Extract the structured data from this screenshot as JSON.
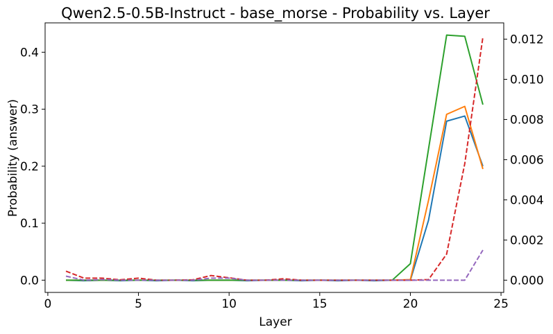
{
  "chart_data": {
    "type": "line",
    "title": "Qwen2.5-0.5B-Instruct - base_morse - Probability vs. Layer",
    "xlabel": "Layer",
    "ylabel": "Probability (answer)",
    "xlim": [
      -0.15,
      25.15
    ],
    "ylim": [
      -0.0215,
      0.4515
    ],
    "y2lim": [
      -0.00061,
      0.01281
    ],
    "xticks": [
      0,
      5,
      10,
      15,
      20,
      25
    ],
    "yticks": [
      0.0,
      0.1,
      0.2,
      0.3,
      0.4
    ],
    "ytick_labels": [
      "0.0",
      "0.1",
      "0.2",
      "0.3",
      "0.4"
    ],
    "y2ticks": [
      0.0,
      0.002,
      0.004,
      0.006,
      0.008,
      0.01,
      0.012
    ],
    "y2tick_labels": [
      "0.000",
      "0.002",
      "0.004",
      "0.006",
      "0.008",
      "0.010",
      "0.012"
    ],
    "grid": false,
    "x": [
      1,
      2,
      3,
      4,
      5,
      6,
      7,
      8,
      9,
      10,
      11,
      12,
      13,
      14,
      15,
      16,
      17,
      18,
      19,
      20,
      21,
      22,
      23,
      24
    ],
    "series": [
      {
        "axis": "left",
        "style": "solid",
        "color": "#1f77b4",
        "values": [
          0.0,
          -0.001,
          0.0,
          -0.001,
          0.0,
          -0.001,
          0.0,
          -0.001,
          0.0,
          0.0,
          -0.001,
          0.0,
          0.0,
          -0.001,
          0.0,
          -0.001,
          0.0,
          -0.001,
          0.0,
          0.0,
          0.105,
          0.279,
          0.288,
          0.2
        ]
      },
      {
        "axis": "left",
        "style": "solid",
        "color": "#ff7f0e",
        "values": [
          0.0,
          0.0,
          0.0,
          0.0,
          0.0,
          0.0,
          0.0,
          0.0,
          0.0,
          0.0,
          0.0,
          0.0,
          0.0,
          0.0,
          0.0,
          0.0,
          0.0,
          0.0,
          0.0,
          0.001,
          0.14,
          0.291,
          0.305,
          0.195
        ]
      },
      {
        "axis": "left",
        "style": "solid",
        "color": "#2ca02c",
        "values": [
          0.0,
          0.0,
          0.0,
          0.0,
          0.0,
          0.0,
          0.0,
          0.0,
          0.0,
          0.0,
          0.0,
          0.0,
          0.0,
          0.0,
          0.0,
          0.0,
          0.0,
          0.0,
          0.0,
          0.029,
          0.23,
          0.43,
          0.428,
          0.308
        ]
      },
      {
        "axis": "right",
        "style": "dashed",
        "color": "#d62728",
        "values": [
          0.00045,
          0.0001,
          0.0001,
          2e-05,
          0.0001,
          0.0,
          0.0,
          2e-05,
          0.00023,
          0.00012,
          0.0,
          0.0,
          7e-05,
          0.0,
          0.0,
          0.0,
          0.0,
          0.0,
          0.0,
          0.0,
          3e-05,
          0.0013,
          0.0058,
          0.0121
        ]
      },
      {
        "axis": "right",
        "style": "dashed",
        "color": "#9467bd",
        "values": [
          0.0002,
          0.0,
          3e-05,
          0.0,
          0.0,
          0.0,
          0.0,
          0.0,
          0.0001,
          0.0001,
          0.0,
          0.0,
          0.0,
          0.0,
          0.0,
          0.0,
          0.0,
          0.0,
          0.0,
          0.0,
          0.0,
          0.0,
          0.0,
          0.0015
        ]
      }
    ]
  }
}
